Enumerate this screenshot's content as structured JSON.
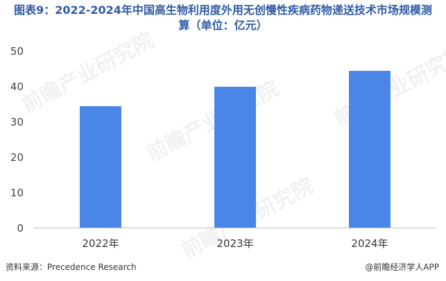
{
  "title": {
    "line1": "图表9：2022-2024年中国高生物利用度外用无创慢性疾病药物递送技术市场规模测",
    "line2": "算（单位：亿元）"
  },
  "footer": {
    "source": "资料来源：Precedence Research",
    "brand": "@前瞻经济学人APP"
  },
  "watermark": {
    "text": "前瞻产业研究院"
  },
  "chart_data": {
    "type": "bar",
    "categories": [
      "2022年",
      "2023年",
      "2024年"
    ],
    "values": [
      34.3,
      39.8,
      44.3
    ],
    "ylim": [
      0,
      50
    ],
    "yticks": [
      0,
      10,
      20,
      30,
      40,
      50
    ],
    "ylabel": "",
    "xlabel": "",
    "bar_color": "#4a86e8",
    "grid": false
  }
}
